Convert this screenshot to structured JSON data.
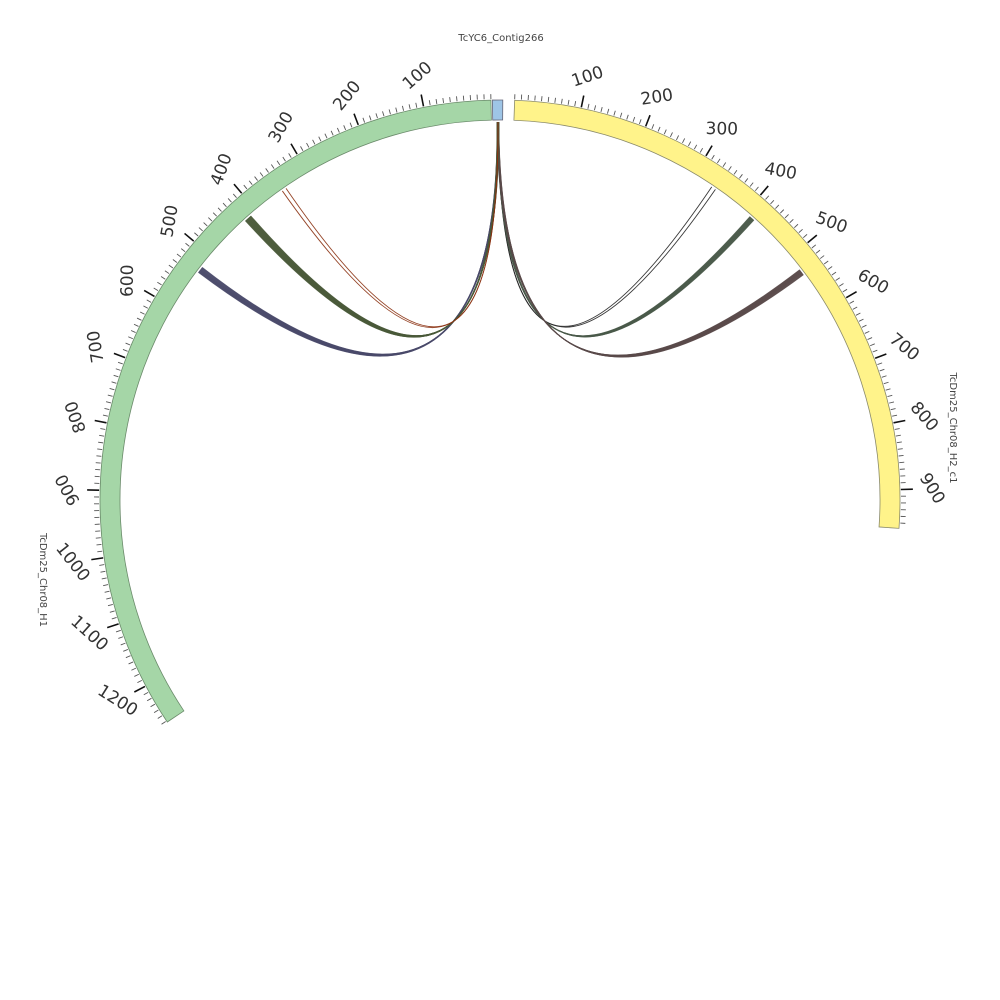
{
  "segments": [
    {
      "id": "contig",
      "name": "TcYC6_Contig266",
      "color": "#9ec5e6",
      "tick_labels": []
    },
    {
      "id": "h2c1",
      "name": "TcDm25_Chr08_H2_c1",
      "color": "#fff38a",
      "tick_labels": [
        "100",
        "200",
        "300",
        "400",
        "500",
        "600",
        "700",
        "800",
        "900"
      ]
    },
    {
      "id": "h1",
      "name": "TcDm25_Chr08_H1",
      "color": "#a5d6a7",
      "tick_labels": [
        "100",
        "200",
        "300",
        "400",
        "500",
        "600",
        "700",
        "800",
        "900",
        "1000",
        "1100",
        "1200"
      ]
    }
  ],
  "links": [
    {
      "target": "h2c1",
      "position": 333,
      "count": 2,
      "color": "#222222"
    },
    {
      "target": "h2c1",
      "position": 414,
      "count": 12,
      "color": "#4a5a4a"
    },
    {
      "target": "h2c1",
      "position": 530,
      "count": 14,
      "color": "#5a4a4a"
    },
    {
      "target": "h1",
      "position": 528,
      "count": 14,
      "color": "#4a4a6a"
    },
    {
      "target": "h1",
      "position": 418,
      "count": 16,
      "color": "#4a5a3a"
    },
    {
      "target": "h1",
      "position": 342,
      "count": 2,
      "color": "#8a3010"
    }
  ]
}
